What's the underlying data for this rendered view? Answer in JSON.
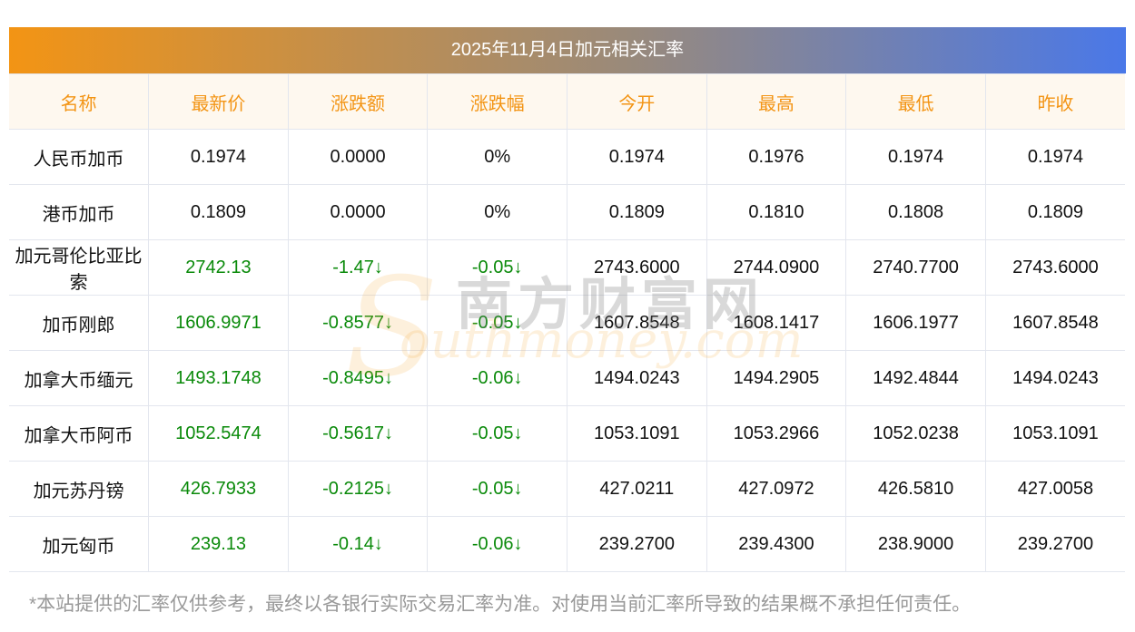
{
  "title": "2025年11月4日加元相关汇率",
  "headers": [
    "名称",
    "最新价",
    "涨跌额",
    "涨跌幅",
    "今开",
    "最高",
    "最低",
    "昨收"
  ],
  "rows": [
    [
      "人民币加币",
      "0.1974",
      "0.0000",
      "0%",
      "0.1974",
      "0.1976",
      "0.1974",
      "0.1974"
    ],
    [
      "港币加币",
      "0.1809",
      "0.0000",
      "0%",
      "0.1809",
      "0.1810",
      "0.1808",
      "0.1809"
    ],
    [
      "加元哥伦比亚比索",
      "2742.13",
      "-1.47↓",
      "-0.05↓",
      "2743.6000",
      "2744.0900",
      "2740.7700",
      "2743.6000"
    ],
    [
      "加币刚郎",
      "1606.9971",
      "-0.8577↓",
      "-0.05↓",
      "1607.8548",
      "1608.1417",
      "1606.1977",
      "1607.8548"
    ],
    [
      "加拿大币缅元",
      "1493.1748",
      "-0.8495↓",
      "-0.06↓",
      "1494.0243",
      "1494.2905",
      "1492.4844",
      "1494.0243"
    ],
    [
      "加拿大币阿币",
      "1052.5474",
      "-0.5617↓",
      "-0.05↓",
      "1053.1091",
      "1053.2966",
      "1052.0238",
      "1053.1091"
    ],
    [
      "加元苏丹镑",
      "426.7933",
      "-0.2125↓",
      "-0.05↓",
      "427.0211",
      "427.0972",
      "426.5810",
      "427.0058"
    ],
    [
      "加元匈币",
      "239.13",
      "-0.14↓",
      "-0.06↓",
      "239.2700",
      "239.4300",
      "238.9000",
      "239.2700"
    ]
  ],
  "colored_rows": [
    2,
    3,
    4,
    5,
    6,
    7
  ],
  "colors": {
    "header_text": "#f39414",
    "down": "#0a8a0a"
  },
  "watermark": {
    "cn": "南方财富网",
    "en": "Southmoney.com"
  },
  "note": "*本站提供的汇率仅供参考，最终以各银行实际交易汇率为准。对使用当前汇率所导致的结果概不承担任何责任。"
}
